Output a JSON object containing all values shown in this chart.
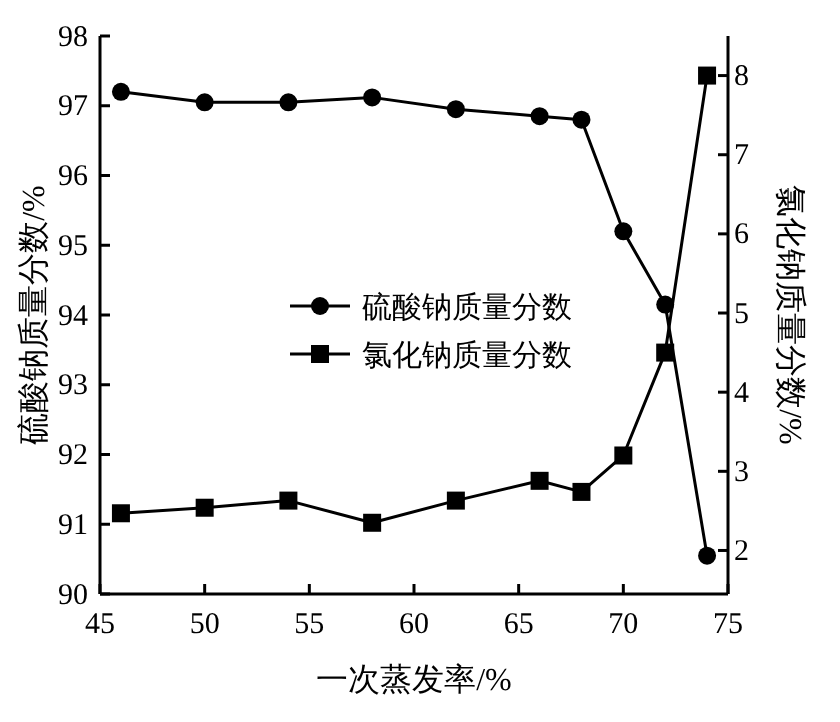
{
  "chart_data": {
    "type": "line",
    "xlabel": "一次蒸发率/%",
    "ylabel": "硫酸钠质量分数/%",
    "y2label": "氯化钠质量分数/%",
    "x": [
      46,
      50,
      54,
      58,
      62,
      66,
      68,
      70,
      72,
      74
    ],
    "series": [
      {
        "name": "硫酸钠质量分数",
        "color": "#000000",
        "marker": "circle",
        "values": [
          97.2,
          97.05,
          97.05,
          97.12,
          96.95,
          96.85,
          96.8,
          95.2,
          94.15,
          90.55
        ]
      },
      {
        "name": "氯化钠质量分数",
        "color": "#000000",
        "marker": "square",
        "axis": "y2",
        "values": [
          2.47,
          2.54,
          2.63,
          2.35,
          2.63,
          2.88,
          2.74,
          3.2,
          4.5,
          8
        ]
      }
    ],
    "xlim": [
      45,
      75
    ],
    "xticks": [
      45,
      50,
      55,
      60,
      65,
      70,
      75
    ],
    "ylim": [
      90,
      98
    ],
    "yticks": [
      90,
      91,
      92,
      93,
      94,
      95,
      96,
      97,
      98
    ],
    "y2lim": [
      1.45,
      8.5
    ],
    "y2ticks": [
      2,
      3,
      4,
      5,
      6,
      7,
      8
    ],
    "legend": "center",
    "grid": false,
    "line_style": "solid"
  }
}
